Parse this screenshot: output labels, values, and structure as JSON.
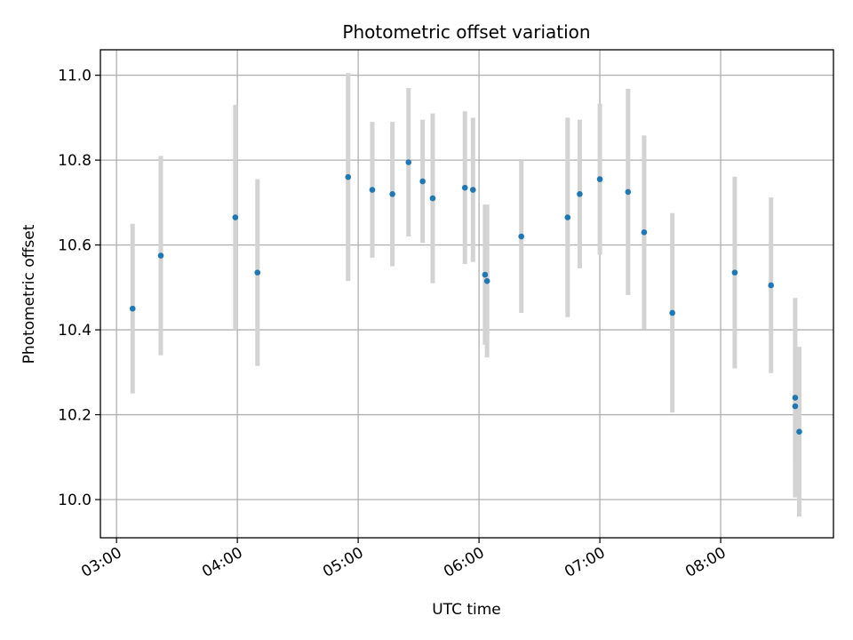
{
  "chart_data": {
    "type": "scatter",
    "title": "Photometric offset variation",
    "xlabel": "UTC time",
    "ylabel": "Photometric offset",
    "xlim": [
      "02:52",
      "08:56"
    ],
    "ylim": [
      9.91,
      11.06
    ],
    "grid": true,
    "x_ticks": [
      "03:00",
      "04:00",
      "05:00",
      "06:00",
      "07:00",
      "08:00"
    ],
    "y_ticks": [
      "10.0",
      "10.2",
      "10.4",
      "10.6",
      "10.8",
      "11.0"
    ],
    "y_tick_values": [
      10.0,
      10.2,
      10.4,
      10.6,
      10.8,
      11.0
    ],
    "marker_color": "#1f77b4",
    "errorbar_color": "#d3d3d3",
    "points": [
      {
        "x": "03:08",
        "y": 10.45,
        "err": 0.2
      },
      {
        "x": "03:22",
        "y": 10.575,
        "err": 0.235
      },
      {
        "x": "03:59",
        "y": 10.665,
        "err": 0.265
      },
      {
        "x": "04:10",
        "y": 10.535,
        "err": 0.22
      },
      {
        "x": "04:55",
        "y": 10.76,
        "err": 0.245
      },
      {
        "x": "05:07",
        "y": 10.73,
        "err": 0.16
      },
      {
        "x": "05:17",
        "y": 10.72,
        "err": 0.17
      },
      {
        "x": "05:25",
        "y": 10.795,
        "err": 0.175
      },
      {
        "x": "05:32",
        "y": 10.75,
        "err": 0.145
      },
      {
        "x": "05:37",
        "y": 10.71,
        "err": 0.2
      },
      {
        "x": "05:53",
        "y": 10.735,
        "err": 0.18
      },
      {
        "x": "05:57",
        "y": 10.73,
        "err": 0.17
      },
      {
        "x": "06:03",
        "y": 10.53,
        "err": 0.165
      },
      {
        "x": "06:04",
        "y": 10.515,
        "err": 0.18
      },
      {
        "x": "06:21",
        "y": 10.62,
        "err": 0.18
      },
      {
        "x": "06:44",
        "y": 10.665,
        "err": 0.235
      },
      {
        "x": "06:50",
        "y": 10.72,
        "err": 0.175
      },
      {
        "x": "07:00",
        "y": 10.755,
        "err": 0.178
      },
      {
        "x": "07:14",
        "y": 10.725,
        "err": 0.243
      },
      {
        "x": "07:22",
        "y": 10.63,
        "err": 0.228
      },
      {
        "x": "07:36",
        "y": 10.44,
        "err": 0.235
      },
      {
        "x": "08:07",
        "y": 10.535,
        "err": 0.226
      },
      {
        "x": "08:25",
        "y": 10.505,
        "err": 0.207
      },
      {
        "x": "08:37",
        "y": 10.24,
        "err": 0.235
      },
      {
        "x": "08:37",
        "y": 10.22,
        "err": 0.14
      },
      {
        "x": "08:39",
        "y": 10.16,
        "err": 0.2
      }
    ]
  }
}
